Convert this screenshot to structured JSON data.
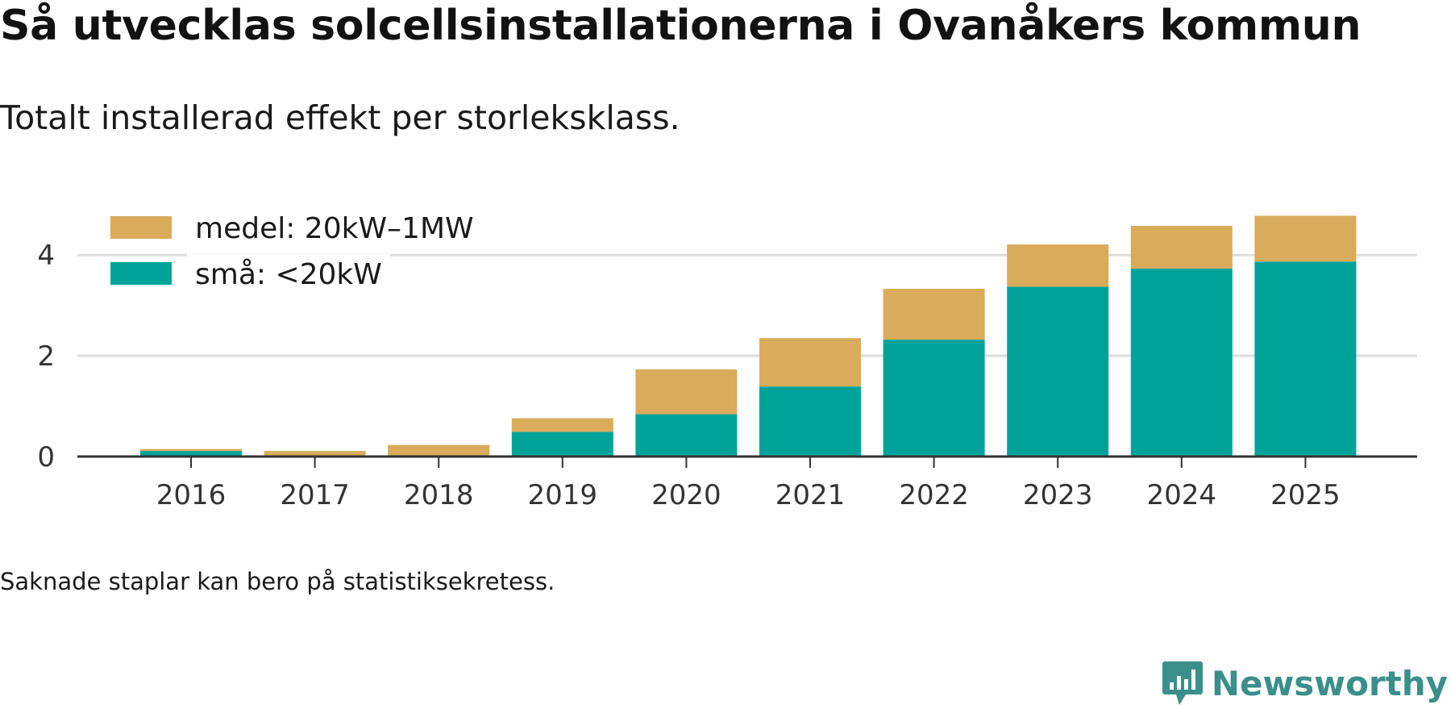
{
  "title": "Så utvecklas solcellsinstallationerna i Ovanåkers kommun",
  "subtitle": "Totalt installerad effekt per storleksklass.",
  "footnote": "Saknade staplar kan bero på statistiksekretess.",
  "brand": {
    "name": "Newsworthy",
    "icon": "newsworthy-logo-icon"
  },
  "colors": {
    "small": "#00a39a",
    "medium": "#d9ab5a",
    "grid": "#dddddd",
    "axis": "#333333"
  },
  "chart_data": {
    "type": "bar",
    "stacked": true,
    "title": "Så utvecklas solcellsinstallationerna i Ovanåkers kommun",
    "subtitle": "Totalt installerad effekt per storleksklass.",
    "xlabel": "",
    "ylabel": "",
    "ylim": [
      0,
      4.9
    ],
    "yticks": [
      0,
      2,
      4
    ],
    "grid": true,
    "legend_position": "top-left",
    "categories": [
      "2016",
      "2017",
      "2018",
      "2019",
      "2020",
      "2021",
      "2022",
      "2023",
      "2024",
      "2025"
    ],
    "series": [
      {
        "name": "små: <20kW",
        "color": "#00a39a",
        "values": [
          0.11,
          0.0,
          0.0,
          0.49,
          0.84,
          1.39,
          2.32,
          3.37,
          3.73,
          3.87
        ]
      },
      {
        "name": "medel: 20kW–1MW",
        "color": "#d9ab5a",
        "values": [
          0.04,
          0.11,
          0.23,
          0.27,
          0.89,
          0.96,
          1.01,
          0.84,
          0.85,
          0.91
        ]
      }
    ]
  }
}
